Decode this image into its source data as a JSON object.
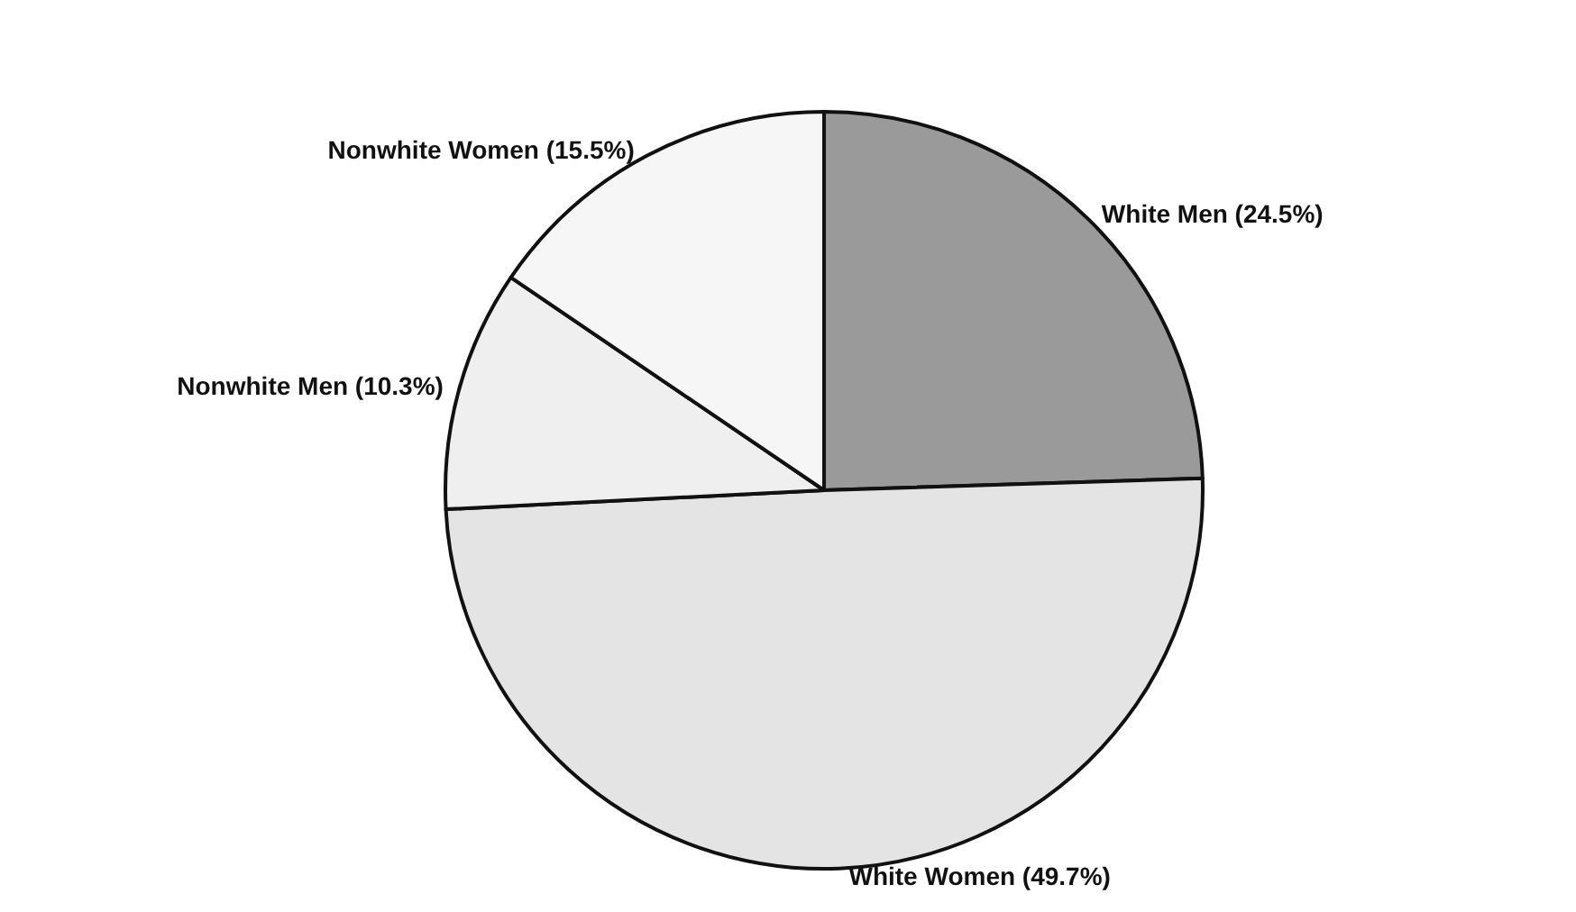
{
  "chart_data": {
    "type": "pie",
    "categories": [
      "White Men (24.5%)",
      "White Women (49.7%)",
      "Nonwhite Men (10.3%)",
      "Nonwhite Women (15.5%)"
    ],
    "values": [
      24.5,
      49.7,
      10.3,
      15.5
    ],
    "colors": [
      "#9a9a9a",
      "#e4e4e4",
      "#efefef",
      "#f6f6f6"
    ],
    "legend": false
  }
}
